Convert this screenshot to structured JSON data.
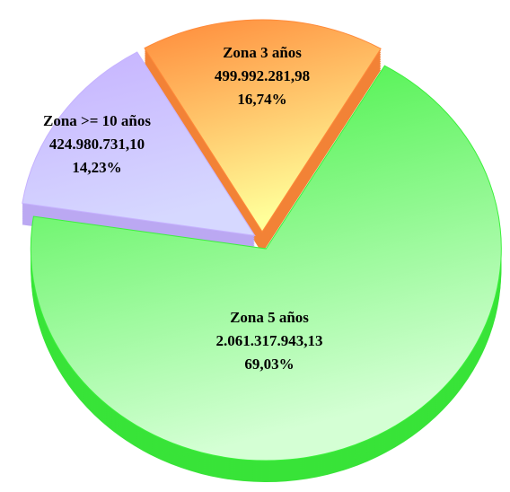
{
  "chart_data": {
    "type": "pie",
    "categories": [
      "Zona 3 años",
      "Zona 5 años",
      "Zona >= 10 años"
    ],
    "values": [
      499992281.98,
      2061317943.13,
      424980731.1
    ],
    "value_labels": [
      "499.992.281,98",
      "2.061.317.943,13",
      "424.980.731,10"
    ],
    "percentages": [
      16.74,
      69.03,
      14.23
    ],
    "percentage_labels": [
      "16,74%",
      "69,03%",
      "14,23%"
    ],
    "colors": [
      "#ff8a3a",
      "#3cf03c",
      "#c6b2ff"
    ]
  }
}
